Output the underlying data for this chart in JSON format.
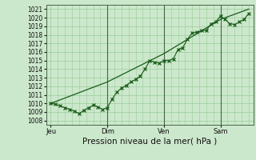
{
  "bg_color": "#cce8cc",
  "plot_bg_color": "#cce8cc",
  "grid_color": "#99cc99",
  "line_color": "#1a5c1a",
  "marker_color": "#1a5c1a",
  "xlabel": "Pression niveau de la mer( hPa )",
  "ylim": [
    1007.5,
    1021.5
  ],
  "yticks": [
    1008,
    1009,
    1010,
    1011,
    1012,
    1013,
    1014,
    1015,
    1016,
    1017,
    1018,
    1019,
    1020,
    1021
  ],
  "xtick_labels": [
    "Jeu",
    "Dim",
    "Ven",
    "Sam"
  ],
  "xtick_positions": [
    0,
    48,
    96,
    144
  ],
  "xlim": [
    -4,
    172
  ],
  "vline_positions": [
    48,
    96,
    144
  ],
  "line1_x": [
    0,
    4,
    8,
    12,
    16,
    20,
    24,
    28,
    32,
    36,
    40,
    44,
    48,
    52,
    56,
    60,
    64,
    68,
    72,
    76,
    80,
    84,
    88,
    92,
    96,
    100,
    104,
    108,
    112,
    116,
    120,
    124,
    128,
    132,
    136,
    140,
    144,
    148,
    152,
    156,
    160,
    164,
    168
  ],
  "line1_y": [
    1010.0,
    1009.9,
    1009.7,
    1009.5,
    1009.3,
    1009.1,
    1008.8,
    1009.2,
    1009.5,
    1009.8,
    1009.6,
    1009.3,
    1009.5,
    1010.5,
    1011.3,
    1011.8,
    1012.1,
    1012.5,
    1012.8,
    1013.2,
    1014.0,
    1015.0,
    1014.8,
    1014.7,
    1015.0,
    1015.0,
    1015.2,
    1016.3,
    1016.5,
    1017.5,
    1018.2,
    1018.3,
    1018.5,
    1018.5,
    1019.3,
    1019.5,
    1020.2,
    1019.8,
    1019.3,
    1019.2,
    1019.5,
    1019.8,
    1020.5
  ],
  "line2_x": [
    0,
    48,
    96,
    144,
    168
  ],
  "line2_y": [
    1010.0,
    1012.5,
    1015.8,
    1019.8,
    1021.0
  ],
  "title": ""
}
